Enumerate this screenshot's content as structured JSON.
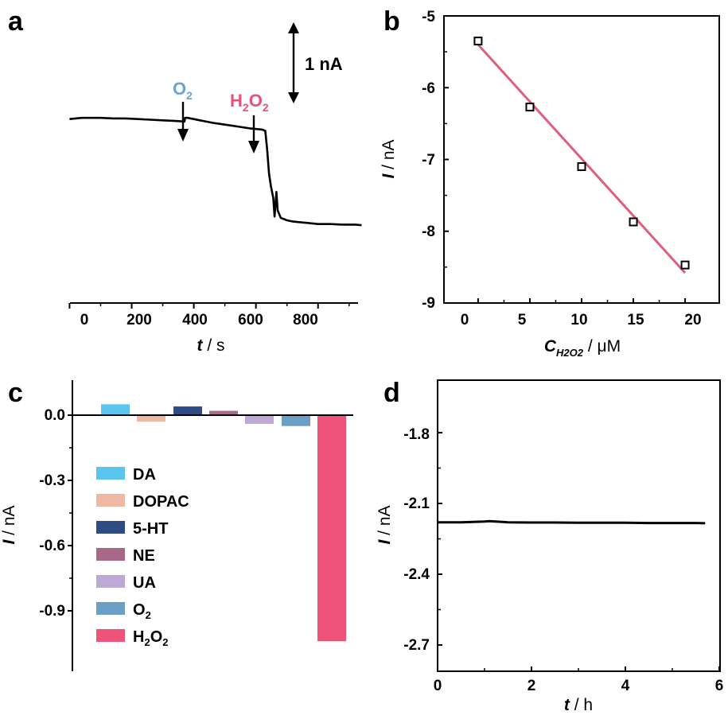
{
  "chart_data": [
    {
      "panel": "a",
      "type": "line",
      "x": [
        0,
        20,
        40,
        60,
        80,
        100,
        140,
        180,
        220,
        260,
        300,
        340,
        370,
        372,
        380,
        420,
        460,
        500,
        540,
        580,
        620,
        630,
        636,
        642,
        648,
        656,
        660,
        666,
        670,
        680,
        700,
        720,
        760,
        800,
        840,
        880,
        920,
        940
      ],
      "y": [
        -0.02,
        -0.01,
        0.0,
        0.0,
        0.0,
        0.0,
        -0.01,
        -0.01,
        -0.02,
        -0.03,
        -0.04,
        -0.05,
        -0.06,
        0.0,
        0.0,
        -0.04,
        -0.08,
        -0.11,
        -0.14,
        -0.17,
        -0.19,
        -0.21,
        -0.5,
        -0.9,
        -1.1,
        -1.3,
        -1.6,
        -1.2,
        -1.5,
        -1.62,
        -1.66,
        -1.68,
        -1.7,
        -1.72,
        -1.72,
        -1.73,
        -1.73,
        -1.74
      ],
      "xlabel_var": "t",
      "xlabel_unit": "s",
      "xticks": [
        "0",
        "200",
        "400",
        "600",
        "800"
      ],
      "xlim": [
        -60,
        980
      ],
      "ylim": [
        -3.0,
        1.6
      ],
      "annotations": [
        {
          "label_main": "O",
          "label_sub": "2",
          "at_x": 365,
          "color": "#6fa3cf"
        },
        {
          "label_h": "H",
          "label_sub1": "2",
          "label_o": "O",
          "label_sub2": "2",
          "at_x": 630,
          "color": "#e8507a"
        }
      ],
      "scale_bar": "1 nA"
    },
    {
      "panel": "b",
      "type": "scatter",
      "x": [
        0,
        5,
        10,
        15,
        20
      ],
      "y": [
        -5.35,
        -6.27,
        -7.1,
        -7.87,
        -8.47
      ],
      "fit": {
        "x": [
          0,
          20
        ],
        "y": [
          -5.4,
          -8.58
        ],
        "color": "#e05e7d"
      },
      "xlabel_var": "C",
      "xlabel_sub": "H2O2",
      "xlabel_unit": "μM",
      "ylabel_var": "I",
      "ylabel_unit": "nA",
      "xticks": [
        "0",
        "5",
        "10",
        "15",
        "20"
      ],
      "yticks": [
        "-5",
        "-6",
        "-7",
        "-8",
        "-9"
      ],
      "xlim": [
        -3.3,
        23.3
      ],
      "ylim": [
        -9,
        -5
      ]
    },
    {
      "panel": "c",
      "type": "bar",
      "categories": [
        "DA",
        "DOPAC",
        "5-HT",
        "NE",
        "UA",
        "O2",
        "H2O2"
      ],
      "values": [
        0.05,
        -0.03,
        0.04,
        0.02,
        -0.04,
        -0.05,
        -1.04
      ],
      "colors": [
        "#5cc5ee",
        "#f0b7a3",
        "#2e4b84",
        "#a7688a",
        "#bda8d6",
        "#6b9fc6",
        "#ee5479"
      ],
      "legend": [
        {
          "name": "DA"
        },
        {
          "name": "DOPAC"
        },
        {
          "name": "5-HT"
        },
        {
          "name": "NE"
        },
        {
          "name": "UA"
        },
        {
          "name_main": "O",
          "name_sub": "2"
        },
        {
          "name_h": "H",
          "name_sub1": "2",
          "name_o": "O",
          "name_sub2": "2"
        }
      ],
      "ylabel_var": "I",
      "ylabel_unit": "nA",
      "yticks": [
        "0.0",
        "-0.3",
        "-0.6",
        "-0.9"
      ],
      "ylim": [
        -1.18,
        0.16
      ]
    },
    {
      "panel": "d",
      "type": "line",
      "x": [
        0,
        0.5,
        1.0,
        1.1,
        1.5,
        2.0,
        2.5,
        3.0,
        3.5,
        4.0,
        4.5,
        5.0,
        5.5,
        5.7
      ],
      "y": [
        -2.18,
        -2.18,
        -2.177,
        -2.175,
        -2.18,
        -2.181,
        -2.181,
        -2.182,
        -2.182,
        -2.182,
        -2.183,
        -2.183,
        -2.183,
        -2.184
      ],
      "xlabel_var": "t",
      "xlabel_unit": "h",
      "ylabel_var": "I",
      "ylabel_unit": "nA",
      "xticks": [
        "0",
        "2",
        "4",
        "6"
      ],
      "yticks": [
        "-1.8",
        "-2.1",
        "-2.4",
        "-2.7"
      ],
      "xlim": [
        0,
        6
      ],
      "ylim": [
        -2.86,
        -1.52
      ]
    }
  ],
  "panel_labels": [
    "a",
    "b",
    "c",
    "d"
  ]
}
